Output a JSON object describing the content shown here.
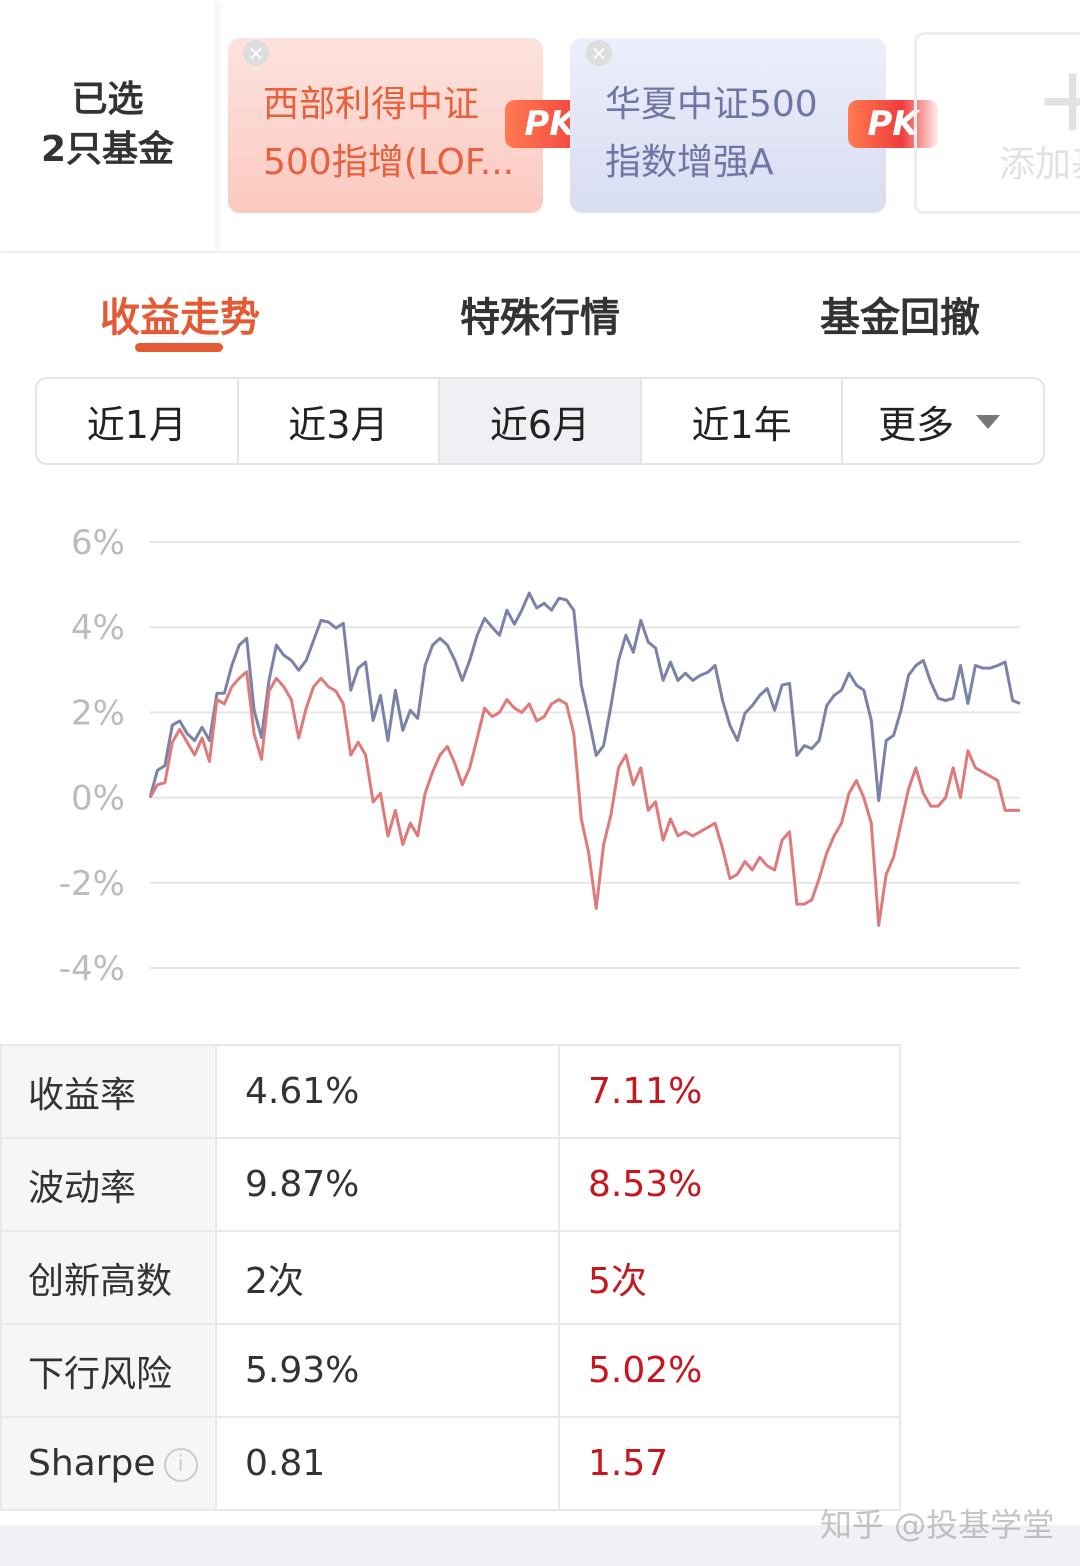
{
  "header": {
    "selected_label": "已选",
    "selected_count": "2只基金",
    "funds": [
      {
        "line1": "西部利得中证",
        "line2": "500指增(LOF..."
      },
      {
        "line1": "华夏中证500",
        "line2": "指数增强A"
      }
    ],
    "pk": "PK",
    "add_icon": "+",
    "add_label": "添加基金"
  },
  "tabs": [
    "收益走势",
    "特殊行情",
    "基金回撤"
  ],
  "periods": [
    "近1月",
    "近3月",
    "近6月",
    "近1年",
    "更多"
  ],
  "chart_data": {
    "type": "line",
    "ylim": [
      -4,
      6
    ],
    "yticks": [
      {
        "value": 6,
        "label": "6%"
      },
      {
        "value": 4,
        "label": "4%"
      },
      {
        "value": 2,
        "label": "2%"
      },
      {
        "value": 0,
        "label": "0%"
      },
      {
        "value": -2,
        "label": "-2%"
      },
      {
        "value": -4,
        "label": "-4%"
      }
    ],
    "grid": true,
    "series": [
      {
        "color": "#7b82a8",
        "values": [
          0,
          0.64,
          0.75,
          1.7,
          1.8,
          1.5,
          1.34,
          1.65,
          1.34,
          2.45,
          2.45,
          3.1,
          3.58,
          3.74,
          2.05,
          1.41,
          2.75,
          3.58,
          3.34,
          3.22,
          2.99,
          3.22,
          3.69,
          4.16,
          4.12,
          3.98,
          4.09,
          2.52,
          3.04,
          3.18,
          1.81,
          2.4,
          1.34,
          2.52,
          1.58,
          2.05,
          1.86,
          3.1,
          3.58,
          3.74,
          3.58,
          3.22,
          2.75,
          3.22,
          3.81,
          4.21,
          4.0,
          3.81,
          4.4,
          4.07,
          4.4,
          4.8,
          4.45,
          4.56,
          4.4,
          4.68,
          4.64,
          4.4,
          2.64,
          1.86,
          0.99,
          1.22,
          2.16,
          3.22,
          3.81,
          3.41,
          4.16,
          3.65,
          3.51,
          2.75,
          3.18,
          2.75,
          2.92,
          2.75,
          2.87,
          2.94,
          3.1,
          2.28,
          1.69,
          1.34,
          1.98,
          2.16,
          2.4,
          2.56,
          2.05,
          2.64,
          2.68,
          0.99,
          1.22,
          1.15,
          1.34,
          2.16,
          2.4,
          2.52,
          2.92,
          2.64,
          2.52,
          1.81,
          -0.07,
          1.34,
          1.46,
          2.05,
          2.87,
          3.1,
          3.22,
          2.71,
          2.33,
          2.28,
          2.33,
          3.1,
          2.21,
          3.1,
          3.04,
          3.04,
          3.1,
          3.18,
          2.28,
          2.21
        ]
      },
      {
        "color": "#e07a7a",
        "values": [
          0,
          0.3,
          0.35,
          1.3,
          1.6,
          1.3,
          1.0,
          1.4,
          0.85,
          2.3,
          2.2,
          2.6,
          2.8,
          2.95,
          1.5,
          0.9,
          2.5,
          2.8,
          2.6,
          2.3,
          1.4,
          2.1,
          2.6,
          2.8,
          2.6,
          2.5,
          2.2,
          1.0,
          1.3,
          1.0,
          -0.1,
          0.1,
          -0.9,
          -0.3,
          -1.1,
          -0.6,
          -0.9,
          0.1,
          0.6,
          1.0,
          1.2,
          0.8,
          0.3,
          0.7,
          1.4,
          2.1,
          1.9,
          2.0,
          2.3,
          2.1,
          2.0,
          2.2,
          1.8,
          1.9,
          2.2,
          2.3,
          2.2,
          1.5,
          -0.5,
          -1.3,
          -2.6,
          -1.1,
          -0.4,
          0.7,
          1.0,
          0.3,
          0.7,
          -0.3,
          -0.1,
          -1.0,
          -0.5,
          -0.9,
          -0.8,
          -0.9,
          -0.8,
          -0.7,
          -0.6,
          -1.2,
          -1.9,
          -1.8,
          -1.5,
          -1.7,
          -1.4,
          -1.6,
          -1.7,
          -1.0,
          -0.8,
          -2.5,
          -2.5,
          -2.4,
          -1.9,
          -1.3,
          -0.9,
          -0.6,
          0.1,
          0.4,
          0.0,
          -0.6,
          -3.0,
          -1.8,
          -1.4,
          -0.6,
          0.2,
          0.7,
          0.1,
          -0.2,
          -0.2,
          0.0,
          0.7,
          0.0,
          1.1,
          0.7,
          0.6,
          0.5,
          0.4,
          -0.3,
          -0.3,
          -0.3
        ]
      }
    ]
  },
  "table": {
    "rows": [
      [
        "收益率",
        "4.61%",
        "7.11%"
      ],
      [
        "波动率",
        "9.87%",
        "8.53%"
      ],
      [
        "创新高数",
        "2次",
        "5次"
      ],
      [
        "下行风险",
        "5.93%",
        "5.02%"
      ],
      [
        "Sharpe",
        "0.81",
        "1.57"
      ]
    ]
  },
  "watermark": "知乎 @投基学堂"
}
